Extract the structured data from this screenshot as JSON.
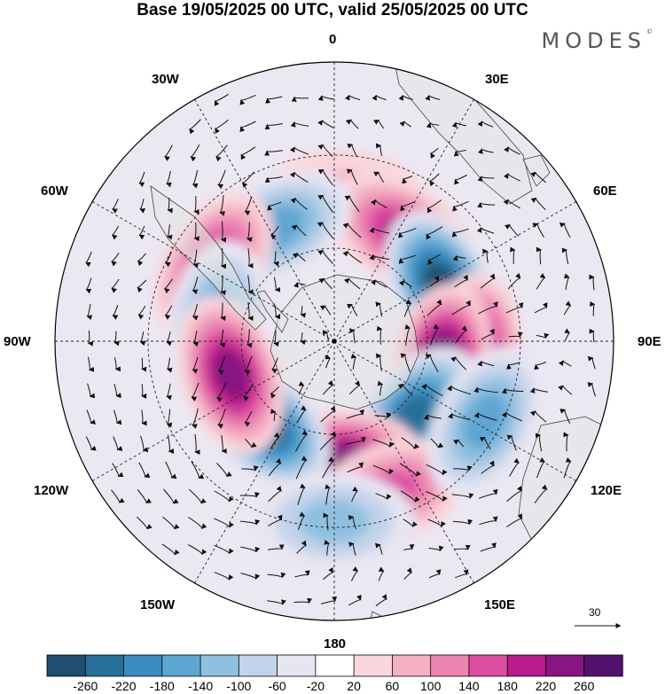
{
  "title": "Base 19/05/2025 00 UTC, valid 25/05/2025 00 UTC",
  "brand": "MODES",
  "brand_mark": "©",
  "longitude_labels": {
    "n": "0",
    "e30": "30E",
    "e60": "60E",
    "e90": "90E",
    "e120": "120E",
    "e150": "150E",
    "s": "180",
    "w150": "150W",
    "w120": "120W",
    "w90": "90W",
    "w60": "60W",
    "w30": "30W"
  },
  "reference_vector_label": "30",
  "colorbar": {
    "colors": [
      "#1f4e6e",
      "#276f98",
      "#3a8cc1",
      "#5ea6d2",
      "#8fc0e0",
      "#c2d3ea",
      "#e6e5f2",
      "#ffffff",
      "#f9d7dc",
      "#f4b1c4",
      "#ec85b1",
      "#dd4ea0",
      "#b81b8b",
      "#861680",
      "#55116e"
    ],
    "tick_labels": [
      "-260",
      "-220",
      "-180",
      "-140",
      "-100",
      "-60",
      "-20",
      "20",
      "60",
      "100",
      "140",
      "180",
      "220",
      "260"
    ]
  },
  "anomaly_field": [
    {
      "lon": 5,
      "lat": -44,
      "value": 60
    },
    {
      "lon": 33,
      "lat": -49,
      "value": 200
    },
    {
      "lon": -27,
      "lat": -49,
      "value": -140
    },
    {
      "lon": -58,
      "lat": -44,
      "value": 180
    },
    {
      "lon": -80,
      "lat": -52,
      "value": -140
    },
    {
      "lon": 63,
      "lat": -51,
      "value": -260
    },
    {
      "lon": 95,
      "lat": -45,
      "value": 220
    },
    {
      "lon": 102,
      "lat": -55,
      "value": 260
    },
    {
      "lon": 133,
      "lat": -55,
      "value": -250
    },
    {
      "lon": 177,
      "lat": -52,
      "value": 240
    },
    {
      "lon": -138,
      "lat": -55,
      "value": -260
    },
    {
      "lon": -108,
      "lat": -55,
      "value": 250
    },
    {
      "lon": 160,
      "lat": -38,
      "value": 140
    },
    {
      "lon": 180,
      "lat": -32,
      "value": -100
    },
    {
      "lon": 118,
      "lat": -35,
      "value": -140
    }
  ]
}
